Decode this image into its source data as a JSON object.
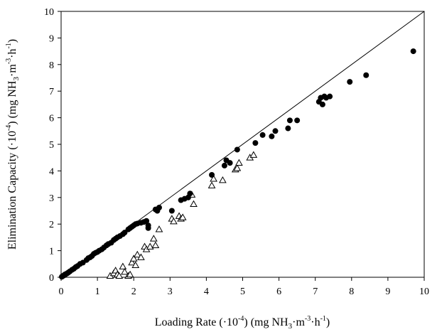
{
  "chart_data": {
    "type": "scatter",
    "title": "",
    "xlabel": {
      "pre": "Loading Rate (·10",
      "exp": "-4",
      "mid1": ") (mg NH",
      "sub": "3",
      "mid2": "·m",
      "exp2": "-3",
      "mid3": "·h",
      "exp3": "-1",
      "post": ")"
    },
    "ylabel": {
      "pre": "Elimination Capacity (·10",
      "exp": "-4",
      "mid1": ") (mg NH",
      "sub": "3",
      "mid2": "·m",
      "exp2": "-3",
      "mid3": "·h",
      "exp3": "-1",
      "post": ")"
    },
    "xlim": [
      0,
      10
    ],
    "ylim": [
      0,
      10
    ],
    "xticks": [
      "0",
      "1",
      "2",
      "3",
      "4",
      "5",
      "6",
      "7",
      "8",
      "9",
      "10"
    ],
    "yticks": [
      "0",
      "1",
      "2",
      "3",
      "4",
      "5",
      "6",
      "7",
      "8",
      "9",
      "10"
    ],
    "grid": false,
    "reference_line": {
      "x": [
        0,
        10
      ],
      "y": [
        0,
        10
      ]
    },
    "series": [
      {
        "marker": "filled-circle",
        "color": "#000000",
        "points": [
          [
            0.02,
            0.02
          ],
          [
            0.05,
            0.05
          ],
          [
            0.08,
            0.07
          ],
          [
            0.1,
            0.1
          ],
          [
            0.13,
            0.12
          ],
          [
            0.17,
            0.15
          ],
          [
            0.2,
            0.18
          ],
          [
            0.24,
            0.22
          ],
          [
            0.3,
            0.28
          ],
          [
            0.35,
            0.32
          ],
          [
            0.4,
            0.38
          ],
          [
            0.45,
            0.42
          ],
          [
            0.52,
            0.5
          ],
          [
            0.6,
            0.55
          ],
          [
            0.7,
            0.65
          ],
          [
            0.75,
            0.72
          ],
          [
            0.8,
            0.75
          ],
          [
            0.85,
            0.8
          ],
          [
            0.9,
            0.88
          ],
          [
            0.95,
            0.92
          ],
          [
            1.0,
            0.95
          ],
          [
            1.05,
            1.0
          ],
          [
            1.12,
            1.05
          ],
          [
            1.18,
            1.12
          ],
          [
            1.25,
            1.2
          ],
          [
            1.3,
            1.25
          ],
          [
            1.38,
            1.3
          ],
          [
            1.45,
            1.4
          ],
          [
            1.5,
            1.45
          ],
          [
            1.55,
            1.5
          ],
          [
            1.62,
            1.55
          ],
          [
            1.7,
            1.62
          ],
          [
            1.75,
            1.68
          ],
          [
            1.85,
            1.8
          ],
          [
            1.9,
            1.85
          ],
          [
            1.95,
            1.9
          ],
          [
            2.0,
            1.95
          ],
          [
            2.05,
            2.0
          ],
          [
            2.1,
            2.02
          ],
          [
            2.2,
            2.05
          ],
          [
            2.28,
            2.08
          ],
          [
            2.35,
            2.12
          ],
          [
            2.4,
            1.95
          ],
          [
            2.4,
            1.85
          ],
          [
            2.6,
            2.55
          ],
          [
            2.65,
            2.5
          ],
          [
            2.7,
            2.62
          ],
          [
            3.05,
            2.5
          ],
          [
            3.3,
            2.9
          ],
          [
            3.4,
            2.95
          ],
          [
            3.5,
            3.0
          ],
          [
            3.55,
            3.15
          ],
          [
            4.15,
            3.85
          ],
          [
            4.5,
            4.2
          ],
          [
            4.55,
            4.4
          ],
          [
            4.65,
            4.3
          ],
          [
            4.85,
            4.8
          ],
          [
            5.35,
            5.05
          ],
          [
            5.55,
            5.35
          ],
          [
            5.8,
            5.3
          ],
          [
            5.9,
            5.5
          ],
          [
            6.25,
            5.6
          ],
          [
            6.3,
            5.9
          ],
          [
            6.5,
            5.9
          ],
          [
            7.1,
            6.6
          ],
          [
            7.15,
            6.75
          ],
          [
            7.2,
            6.5
          ],
          [
            7.25,
            6.8
          ],
          [
            7.3,
            6.75
          ],
          [
            7.4,
            6.8
          ],
          [
            7.95,
            7.35
          ],
          [
            8.4,
            7.6
          ],
          [
            9.7,
            8.5
          ]
        ]
      },
      {
        "marker": "open-triangle",
        "color": "#000000",
        "points": [
          [
            1.35,
            0.05
          ],
          [
            1.45,
            0.15
          ],
          [
            1.5,
            0.25
          ],
          [
            1.55,
            0.1
          ],
          [
            1.6,
            0.05
          ],
          [
            1.7,
            0.4
          ],
          [
            1.75,
            0.2
          ],
          [
            1.85,
            0.05
          ],
          [
            1.9,
            0.1
          ],
          [
            1.95,
            0.55
          ],
          [
            2.0,
            0.7
          ],
          [
            2.05,
            0.45
          ],
          [
            2.1,
            0.85
          ],
          [
            2.2,
            0.75
          ],
          [
            2.3,
            1.15
          ],
          [
            2.35,
            1.05
          ],
          [
            2.45,
            1.15
          ],
          [
            2.55,
            1.45
          ],
          [
            2.6,
            1.2
          ],
          [
            2.7,
            1.8
          ],
          [
            3.05,
            2.2
          ],
          [
            3.1,
            2.1
          ],
          [
            3.25,
            2.3
          ],
          [
            3.3,
            2.2
          ],
          [
            3.35,
            2.25
          ],
          [
            3.6,
            3.1
          ],
          [
            3.65,
            2.75
          ],
          [
            4.15,
            3.45
          ],
          [
            4.2,
            3.7
          ],
          [
            4.45,
            3.65
          ],
          [
            4.8,
            4.05
          ],
          [
            4.85,
            4.1
          ],
          [
            4.9,
            4.3
          ],
          [
            5.2,
            4.5
          ],
          [
            5.3,
            4.6
          ]
        ]
      }
    ]
  }
}
